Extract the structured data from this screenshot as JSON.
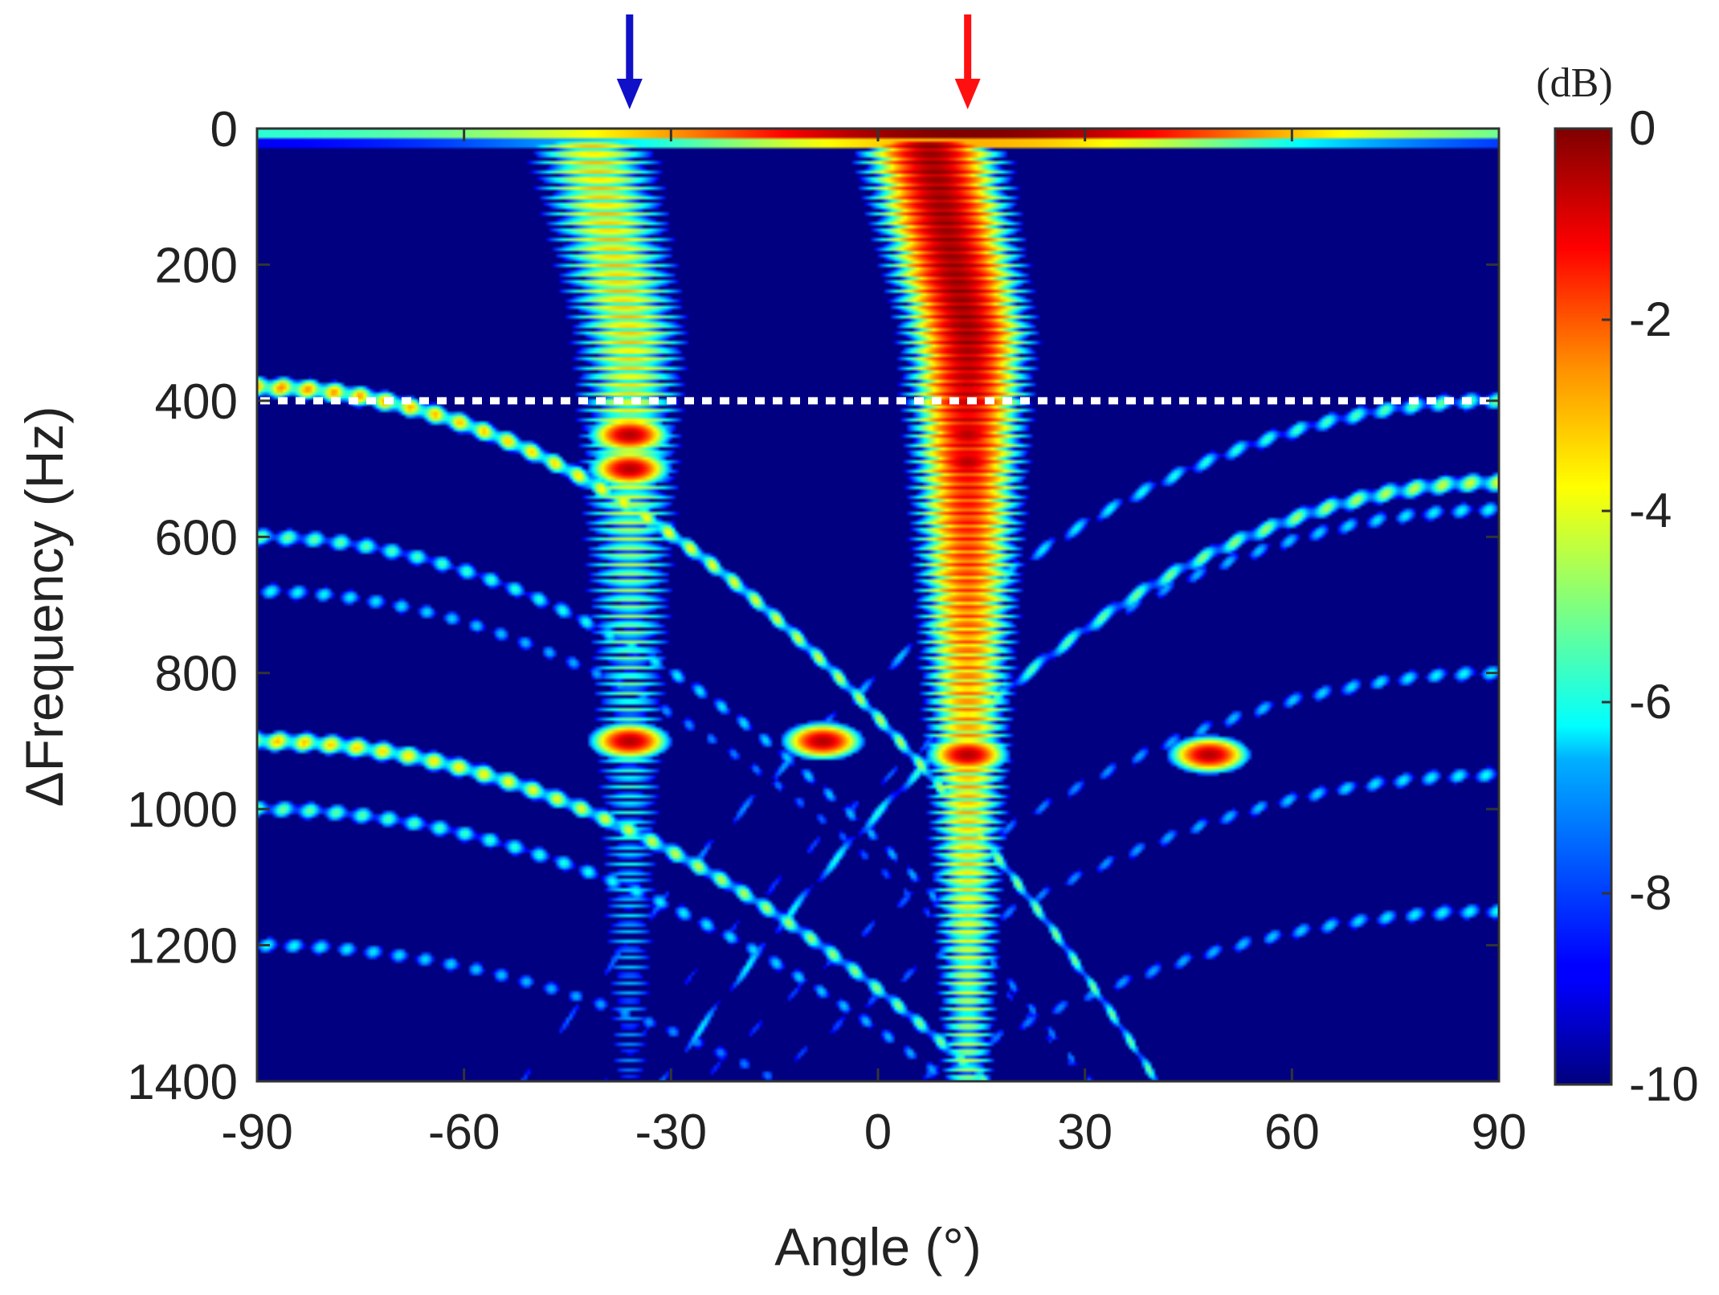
{
  "chart_data": {
    "type": "heatmap",
    "xlabel": "Angle (°)",
    "ylabel": "ΔFrequency (Hz)",
    "xlim": [
      -90,
      90
    ],
    "ylim": [
      0,
      1400
    ],
    "y_reversed": true,
    "x_ticks": [
      -90,
      -60,
      -30,
      0,
      30,
      60,
      90
    ],
    "y_ticks": [
      0,
      200,
      400,
      600,
      800,
      1000,
      1200,
      1400
    ],
    "colorbar": {
      "label": "(dB)",
      "range": [
        -10,
        0
      ],
      "ticks": [
        0,
        -2,
        -4,
        -6,
        -8,
        -10
      ],
      "colormap": "jet"
    },
    "annotations": {
      "dotted_line": {
        "y": 400,
        "color": "#ffffff"
      },
      "arrows": [
        {
          "x": -36,
          "color": "#1010c8"
        },
        {
          "x": 13,
          "color": "#ff1010"
        }
      ]
    },
    "features": {
      "direct_beams": [
        {
          "x0": 13,
          "curvature": 0.0024,
          "peak_db": 0
        },
        {
          "x0": -36,
          "curvature": 0.0024,
          "peak_db": -3
        }
      ],
      "arcs": [
        {
          "side": "left",
          "y0": 380,
          "curvature": 0.06,
          "peak_db": -2.5
        },
        {
          "side": "left",
          "y0": 600,
          "curvature": 0.055,
          "peak_db": -5
        },
        {
          "side": "left",
          "y0": 680,
          "curvature": 0.05,
          "peak_db": -6
        },
        {
          "side": "left",
          "y0": 900,
          "curvature": 0.045,
          "peak_db": -3
        },
        {
          "side": "left",
          "y0": 1000,
          "curvature": 0.04,
          "peak_db": -5
        },
        {
          "side": "left",
          "y0": 1200,
          "curvature": 0.035,
          "peak_db": -6
        },
        {
          "side": "right",
          "y0": 400,
          "curvature": 0.05,
          "peak_db": -5
        },
        {
          "side": "right",
          "y0": 520,
          "curvature": 0.06,
          "peak_db": -4
        },
        {
          "side": "right",
          "y0": 560,
          "curvature": 0.05,
          "peak_db": -6
        },
        {
          "side": "right",
          "y0": 800,
          "curvature": 0.045,
          "peak_db": -6
        },
        {
          "side": "right",
          "y0": 950,
          "curvature": 0.04,
          "peak_db": -6
        },
        {
          "side": "right",
          "y0": 1150,
          "curvature": 0.035,
          "peak_db": -6
        }
      ]
    }
  }
}
